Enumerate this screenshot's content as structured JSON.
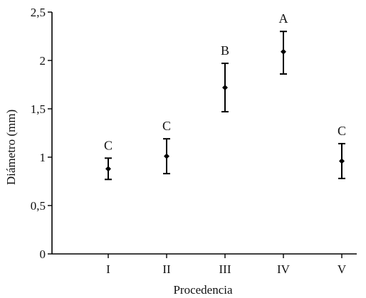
{
  "chart_data": {
    "type": "scatter",
    "title": "",
    "xlabel": "Procedencia",
    "ylabel": "Diámetro (mm)",
    "categories": [
      "I",
      "II",
      "III",
      "IV",
      "V"
    ],
    "yticks": [
      "0",
      "0,5",
      "1",
      "1,5",
      "2",
      "2,5"
    ],
    "ylim": [
      0,
      2.5
    ],
    "grid": false,
    "legend": "none",
    "series": [
      {
        "values": [
          0.88,
          1.01,
          1.72,
          2.09,
          0.96
        ],
        "lower": [
          0.77,
          0.83,
          1.47,
          1.86,
          0.78
        ],
        "upper": [
          0.99,
          1.19,
          1.97,
          2.3,
          1.14
        ],
        "labels": [
          "C",
          "C",
          "B",
          "A",
          "C"
        ]
      }
    ]
  }
}
